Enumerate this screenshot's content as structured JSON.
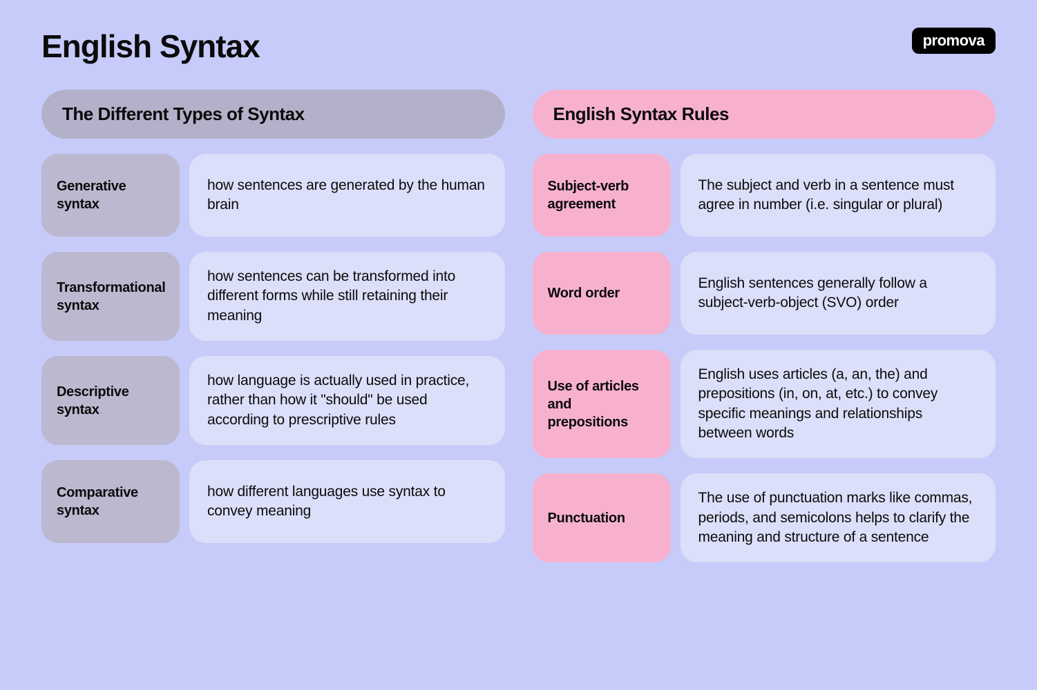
{
  "logo": "promova",
  "title": "English Syntax",
  "colors": {
    "background": "#c7cbf9",
    "purple_header": "#b3b0c9",
    "purple_term": "#bbb8cf",
    "pink": "#f7b1ce",
    "desc_bg": "#dcdff9",
    "text": "#0b0b0b",
    "logo_bg": "#000000",
    "logo_text": "#ffffff"
  },
  "left": {
    "header": "The Different Types of Syntax",
    "rows": [
      {
        "term": "Generative syntax",
        "desc": "how sentences are generated by the human brain"
      },
      {
        "term": "Transformational syntax",
        "desc": "how sentences can be transformed into different forms while still retaining their meaning"
      },
      {
        "term": "Descriptive syntax",
        "desc": "how language is actually used in practice, rather than how it \"should\" be used according to prescriptive rules"
      },
      {
        "term": "Comparative syntax",
        "desc": "how different languages use syntax to convey meaning"
      }
    ]
  },
  "right": {
    "header": "English Syntax Rules",
    "rows": [
      {
        "term": "Subject-verb agreement",
        "desc": "The subject and verb in a sentence must agree in number (i.e. singular or plural)"
      },
      {
        "term": "Word order",
        "desc": "English sentences generally follow a subject-verb-object (SVO) order"
      },
      {
        "term": "Use of articles and prepositions",
        "desc": "English uses articles (a, an, the) and prepositions (in, on, at, etc.) to convey specific meanings and relationships between words"
      },
      {
        "term": "Punctuation",
        "desc": "The use of punctuation marks like commas, periods, and semicolons helps to clarify the meaning and structure of a sentence"
      }
    ]
  }
}
